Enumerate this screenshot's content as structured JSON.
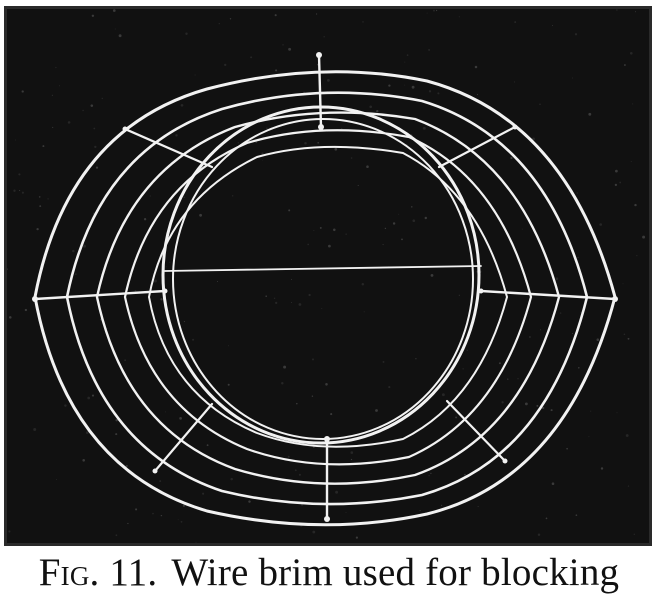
{
  "figure": {
    "image_subject": "wire-brim-photograph",
    "background_color": "#111111",
    "wire_color": "#f2f2f2"
  },
  "caption": {
    "label": "Fig. 11.",
    "text": "Wire brim used for blocking"
  }
}
